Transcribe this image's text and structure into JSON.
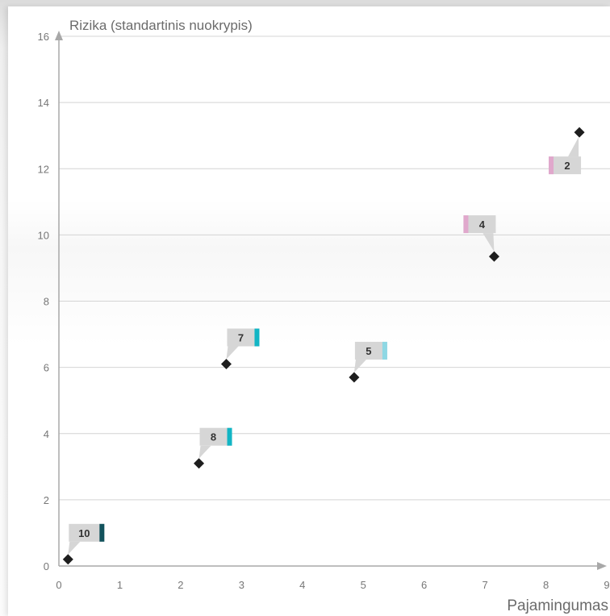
{
  "chart_data": {
    "type": "scatter",
    "ylabel": "Rizika (standartinis nuokrypis)",
    "xlabel": "Pajamingumas",
    "xlim": [
      0,
      9
    ],
    "ylim": [
      0,
      16
    ],
    "x_ticks": [
      0,
      1,
      2,
      3,
      4,
      5,
      6,
      7,
      8,
      9
    ],
    "y_ticks": [
      0,
      2,
      4,
      6,
      8,
      10,
      12,
      14,
      16
    ],
    "grid": true,
    "points": [
      {
        "label": "10",
        "x": 0.15,
        "y": 0.2,
        "color": "#12525c",
        "callout": "above-right"
      },
      {
        "label": "8",
        "x": 2.3,
        "y": 3.1,
        "color": "#12b5c4",
        "callout": "above-right"
      },
      {
        "label": "7",
        "x": 2.75,
        "y": 6.1,
        "color": "#12b5c4",
        "callout": "above-right"
      },
      {
        "label": "5",
        "x": 4.85,
        "y": 5.7,
        "color": "#8ed8e4",
        "callout": "above-right"
      },
      {
        "label": "4",
        "x": 7.15,
        "y": 9.35,
        "color": "#e0a8cc",
        "callout": "above-left"
      },
      {
        "label": "2",
        "x": 8.55,
        "y": 13.1,
        "color": "#e0a8cc",
        "callout": "below-left"
      }
    ]
  }
}
